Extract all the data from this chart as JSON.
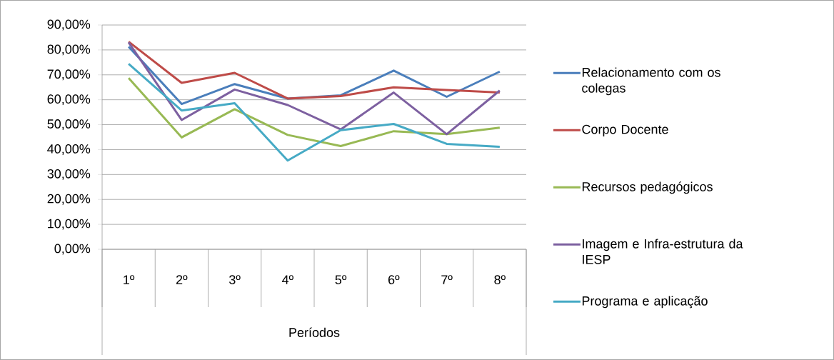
{
  "chart_data": {
    "type": "line",
    "xlabel": "Períodos",
    "categories": [
      "1º",
      "2º",
      "3º",
      "4º",
      "5º",
      "6º",
      "7º",
      "8º"
    ],
    "ylim": [
      0,
      90
    ],
    "yticks": [
      {
        "value": 0,
        "label": "0,00%"
      },
      {
        "value": 10,
        "label": "10,00%"
      },
      {
        "value": 20,
        "label": "20,00%"
      },
      {
        "value": 30,
        "label": "30,00%"
      },
      {
        "value": 40,
        "label": "40,00%"
      },
      {
        "value": 50,
        "label": "50,00%"
      },
      {
        "value": 60,
        "label": "60,00%"
      },
      {
        "value": 70,
        "label": "70,00%"
      },
      {
        "value": 80,
        "label": "80,00%"
      },
      {
        "value": 90,
        "label": "90,00%"
      }
    ],
    "grid": "y",
    "legend": "right",
    "marker": "none",
    "line_style": "solid",
    "series": [
      {
        "name": "Relacionamento com os colegas",
        "color": "#4a7ebb",
        "values": [
          81.3,
          58.3,
          66.3,
          60.5,
          61.8,
          71.7,
          61.2,
          71.3
        ]
      },
      {
        "name": "Corpo Docente",
        "color": "#be4b48",
        "values": [
          83.3,
          66.8,
          70.8,
          60.5,
          61.5,
          65.0,
          63.9,
          62.9
        ]
      },
      {
        "name": "Recursos pedagógicos",
        "color": "#98b954",
        "values": [
          68.7,
          44.9,
          56.2,
          45.9,
          41.4,
          47.4,
          46.2,
          48.8
        ]
      },
      {
        "name": "Imagem e Infra-estrutura da IESP",
        "color": "#7d60a0",
        "values": [
          83.0,
          51.9,
          64.1,
          57.9,
          48.1,
          62.9,
          46.2,
          63.7
        ]
      },
      {
        "name": "Programa e aplicação",
        "color": "#46aac5",
        "values": [
          74.4,
          55.7,
          58.6,
          35.6,
          47.8,
          50.3,
          42.3,
          41.1
        ]
      }
    ]
  }
}
